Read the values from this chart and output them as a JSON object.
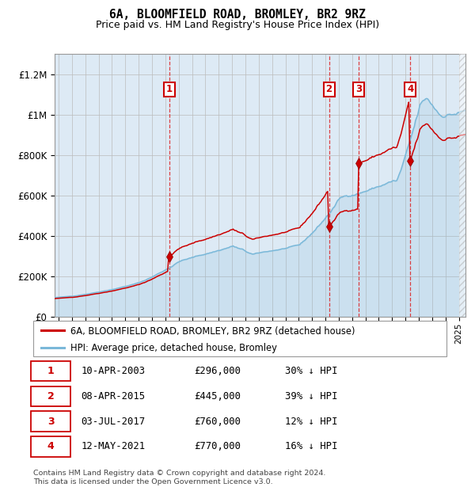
{
  "title": "6A, BLOOMFIELD ROAD, BROMLEY, BR2 9RZ",
  "subtitle": "Price paid vs. HM Land Registry's House Price Index (HPI)",
  "hpi_label": "HPI: Average price, detached house, Bromley",
  "property_label": "6A, BLOOMFIELD ROAD, BROMLEY, BR2 9RZ (detached house)",
  "hpi_color": "#7ab8d9",
  "property_color": "#cc0000",
  "background_color": "#ddeaf5",
  "grid_color": "#bbbbbb",
  "ylim": [
    0,
    1300000
  ],
  "yticks": [
    0,
    200000,
    400000,
    600000,
    800000,
    1000000,
    1200000
  ],
  "ytick_labels": [
    "£0",
    "£200K",
    "£400K",
    "£600K",
    "£800K",
    "£1M",
    "£1.2M"
  ],
  "xmin": 1994.7,
  "xmax": 2025.5,
  "trans_dates_num": [
    2003.28,
    2015.27,
    2017.5,
    2021.36
  ],
  "trans_prices": [
    296000,
    445000,
    760000,
    770000
  ],
  "copyright_text": "Contains HM Land Registry data © Crown copyright and database right 2024.\nThis data is licensed under the Open Government Licence v3.0.",
  "table_rows": [
    [
      "1",
      "10-APR-2003",
      "£296,000",
      "30% ↓ HPI"
    ],
    [
      "2",
      "08-APR-2015",
      "£445,000",
      "39% ↓ HPI"
    ],
    [
      "3",
      "03-JUL-2017",
      "£760,000",
      "12% ↓ HPI"
    ],
    [
      "4",
      "12-MAY-2021",
      "£770,000",
      "16% ↓ HPI"
    ]
  ]
}
